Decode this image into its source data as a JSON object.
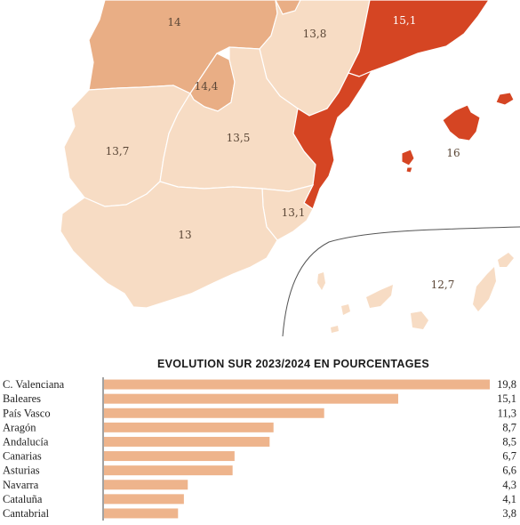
{
  "map": {
    "regions": [
      {
        "id": "castilla-leon",
        "value": "14"
      },
      {
        "id": "madrid",
        "value": "14,4"
      },
      {
        "id": "aragon",
        "value": "13,8"
      },
      {
        "id": "cataluna",
        "value": "15,1"
      },
      {
        "id": "extremadura",
        "value": "13,7"
      },
      {
        "id": "castilla-la-mancha",
        "value": "13,5"
      },
      {
        "id": "valencia",
        "value": "15,1"
      },
      {
        "id": "baleares",
        "value": "16"
      },
      {
        "id": "murcia",
        "value": "13,1"
      },
      {
        "id": "andalucia",
        "value": "13"
      },
      {
        "id": "canarias",
        "value": "12,7"
      }
    ],
    "colors": {
      "light": "#f7dcc4",
      "medium": "#e9ae85",
      "dark": "#d54523",
      "border": "#ffffff"
    }
  },
  "chart_data": {
    "type": "bar",
    "orientation": "horizontal",
    "title": "EVOLUTION SUR 2023/2024 EN POURCENTAGES",
    "categories": [
      "C. Valenciana",
      "Baleares",
      "País Vasco",
      "Aragón",
      "Andalucía",
      "Canarias",
      "Asturias",
      "Navarra",
      "Cataluña",
      "Cantabrial"
    ],
    "values": [
      19.8,
      15.1,
      11.3,
      8.7,
      8.5,
      6.7,
      6.6,
      4.3,
      4.1,
      3.8
    ],
    "value_labels": [
      "19,8",
      "15,1",
      "11,3",
      "8,7",
      "8,5",
      "6,7",
      "6,6",
      "4,3",
      "4,1",
      "3,8"
    ],
    "xlim": [
      0,
      19.8
    ],
    "bar_color": "#eeb48c"
  }
}
